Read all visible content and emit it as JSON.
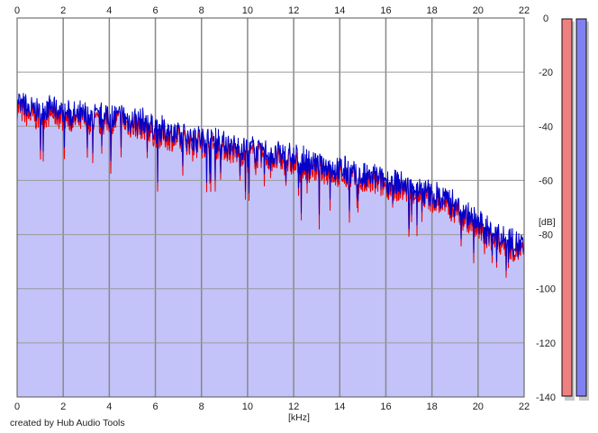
{
  "chart_data": {
    "type": "area",
    "title": "",
    "xlabel": "[kHz]",
    "ylabel": "[dB]",
    "xlim": [
      0,
      22
    ],
    "ylim": [
      -140,
      0
    ],
    "x_ticks": [
      0,
      2,
      4,
      6,
      8,
      10,
      12,
      14,
      16,
      18,
      20,
      22
    ],
    "y_ticks": [
      0,
      -20,
      -40,
      -60,
      -80,
      -100,
      -120,
      -140
    ],
    "x_tick_labels": [
      "0",
      "2",
      "4",
      "6",
      "8",
      "10",
      "12",
      "14",
      "16",
      "18",
      "20",
      "22"
    ],
    "y_tick_labels": [
      "0",
      "-20",
      "-40",
      "-60",
      "-80",
      "-100",
      "-120",
      "-140"
    ],
    "grid": true,
    "series": [
      {
        "color": "#ee0000",
        "x": [
          0,
          0.5,
          1,
          1.5,
          2,
          2.5,
          3,
          3.5,
          4,
          4.5,
          5,
          5.5,
          6,
          6.5,
          7,
          7.5,
          8,
          8.5,
          9,
          9.5,
          10,
          10.5,
          11,
          11.5,
          12,
          12.5,
          13,
          13.5,
          14,
          14.5,
          15,
          15.5,
          16,
          16.5,
          17,
          17.5,
          18,
          18.5,
          19,
          19.5,
          20,
          20.5,
          21,
          21.5,
          22
        ],
        "values": [
          -33,
          -36,
          -37,
          -35,
          -37,
          -38,
          -38,
          -39,
          -38,
          -38,
          -40,
          -40,
          -43,
          -44,
          -45,
          -46,
          -46,
          -47,
          -48,
          -50,
          -50,
          -51,
          -52,
          -53,
          -54,
          -55,
          -56,
          -57,
          -58,
          -59,
          -61,
          -61,
          -62,
          -63,
          -64,
          -65,
          -67,
          -69,
          -71,
          -74,
          -78,
          -81,
          -83,
          -85,
          -87
        ]
      },
      {
        "color": "#0000cc",
        "x": [
          0,
          0.5,
          1,
          1.5,
          2,
          2.5,
          3,
          3.5,
          4,
          4.5,
          5,
          5.5,
          6,
          6.5,
          7,
          7.5,
          8,
          8.5,
          9,
          9.5,
          10,
          10.5,
          11,
          11.5,
          12,
          12.5,
          13,
          13.5,
          14,
          14.5,
          15,
          15.5,
          16,
          16.5,
          17,
          17.5,
          18,
          18.5,
          19,
          19.5,
          20,
          20.5,
          21,
          21.5,
          22
        ],
        "values": [
          -31,
          -34,
          -35,
          -33,
          -35,
          -36,
          -36,
          -37,
          -36,
          -36,
          -38,
          -38,
          -41,
          -42,
          -43,
          -44,
          -44,
          -45,
          -46,
          -48,
          -48,
          -49,
          -50,
          -51,
          -52,
          -53,
          -54,
          -55,
          -56,
          -57,
          -59,
          -59,
          -60,
          -61,
          -62,
          -63,
          -65,
          -67,
          -69,
          -72,
          -76,
          -79,
          -81,
          -83,
          -85
        ]
      }
    ],
    "fill_color": "#c3c3fa",
    "level_meters": [
      {
        "channel": "left",
        "color": "#f08080"
      },
      {
        "channel": "right",
        "color": "#8080f0"
      }
    ]
  },
  "footer": {
    "credit": "created by Hub Audio Tools"
  }
}
